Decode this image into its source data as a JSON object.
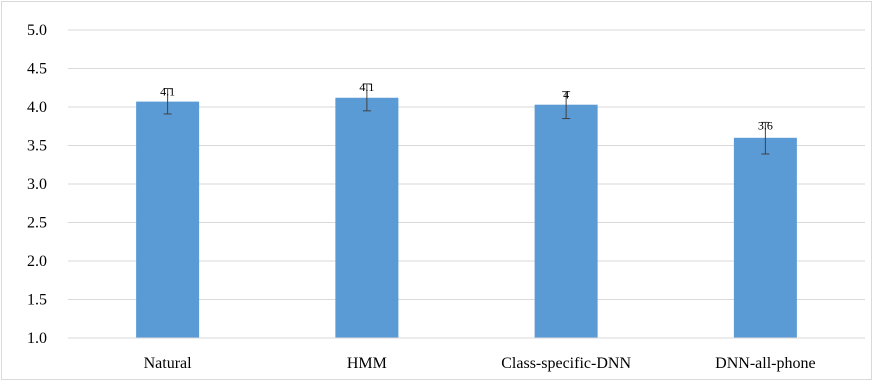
{
  "chart_data": {
    "type": "bar",
    "categories": [
      "Natural",
      "HMM",
      "Class-specific-DNN",
      "DNN-all-phone"
    ],
    "values": [
      4.07,
      4.12,
      4.03,
      3.6
    ],
    "data_labels": [
      "4.1",
      "4.1",
      "4",
      "3.6"
    ],
    "error_bars": [
      {
        "low": 3.91,
        "high": 4.24
      },
      {
        "low": 3.95,
        "high": 4.3
      },
      {
        "low": 3.85,
        "high": 4.2
      },
      {
        "low": 3.39,
        "high": 3.8
      }
    ],
    "yticks": [
      "1.0",
      "1.5",
      "2.0",
      "2.5",
      "3.0",
      "3.5",
      "4.0",
      "4.5",
      "5.0"
    ],
    "ylim": [
      1.0,
      5.0
    ],
    "title": "",
    "xlabel": "",
    "ylabel": "",
    "grid": true,
    "bar_color": "#5b9bd5",
    "grid_color": "#d9d9d9",
    "error_bar_color": "#404040"
  }
}
